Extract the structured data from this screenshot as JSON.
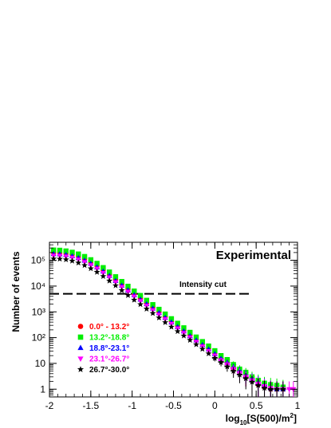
{
  "chart_data": {
    "type": "scatter",
    "annotation": "Experimental",
    "cut_label": "Intensity cut",
    "cut_level": 5000,
    "cut_x_range": [
      -2,
      0.42
    ],
    "xlabel": "log10[S(500)/m2]",
    "ylabel": "Number of events",
    "xlim": [
      -2,
      1
    ],
    "ylim": [
      0.5,
      500000
    ],
    "yscale": "log",
    "x_ticks": [
      "-2",
      "-1.5",
      "-1",
      "-0.5",
      "0",
      "0.5",
      "1"
    ],
    "y_ticks": [
      "1",
      "10",
      "10²",
      "10³",
      "10⁴",
      "10⁵"
    ],
    "grid": false,
    "legend_position": "lower-left",
    "series": [
      {
        "name": "0.0° - 13.2°",
        "color": "#ff0000",
        "marker": "circle",
        "x": [
          -1.95,
          -1.875,
          -1.8,
          -1.725,
          -1.65,
          -1.575,
          -1.5,
          -1.425,
          -1.35,
          -1.275,
          -1.2,
          -1.125,
          -1.05,
          -0.975,
          -0.9,
          -0.825,
          -0.75,
          -0.675,
          -0.6,
          -0.525,
          -0.45,
          -0.375,
          -0.3,
          -0.225,
          -0.15,
          -0.075,
          0.0,
          0.075,
          0.15,
          0.225,
          0.3,
          0.375,
          0.45,
          0.525,
          0.6,
          0.675,
          0.75,
          0.825
        ],
        "y": [
          200000,
          200000,
          190000,
          170000,
          145000,
          115000,
          85000,
          62000,
          42000,
          28000,
          18000,
          12000,
          7800,
          5000,
          3400,
          2200,
          1500,
          1000,
          650,
          430,
          290,
          190,
          125,
          85,
          55,
          37,
          24,
          15,
          11,
          6.5,
          5,
          3,
          2.5,
          1.5,
          1.2,
          1,
          1,
          1
        ]
      },
      {
        "name": "13.2°-18.8°",
        "color": "#00ee00",
        "marker": "square",
        "x": [
          -1.95,
          -1.875,
          -1.8,
          -1.725,
          -1.65,
          -1.575,
          -1.5,
          -1.425,
          -1.35,
          -1.275,
          -1.2,
          -1.125,
          -1.05,
          -0.975,
          -0.9,
          -0.825,
          -0.75,
          -0.675,
          -0.6,
          -0.525,
          -0.45,
          -0.375,
          -0.3,
          -0.225,
          -0.15,
          -0.075,
          0.0,
          0.075,
          0.15,
          0.225,
          0.3,
          0.375,
          0.45,
          0.525,
          0.6,
          0.675,
          0.75,
          0.825
        ],
        "y": [
          250000,
          245000,
          230000,
          205000,
          175000,
          140000,
          105000,
          76000,
          52000,
          35000,
          23000,
          15000,
          9800,
          6400,
          4300,
          2800,
          1900,
          1250,
          820,
          540,
          360,
          240,
          160,
          105,
          70,
          47,
          31,
          20,
          14,
          9,
          6,
          4.5,
          3,
          2.2,
          1.7,
          1.5,
          1.4,
          1.2
        ]
      },
      {
        "name": "18.8°-23.1°",
        "color": "#0000ff",
        "marker": "triangle-up",
        "x": [
          -1.95,
          -1.875,
          -1.8,
          -1.725,
          -1.65,
          -1.575,
          -1.5,
          -1.425,
          -1.35,
          -1.275,
          -1.2,
          -1.125,
          -1.05,
          -0.975,
          -0.9,
          -0.825,
          -0.75,
          -0.675,
          -0.6,
          -0.525,
          -0.45,
          -0.375,
          -0.3,
          -0.225,
          -0.15,
          -0.075,
          0.0,
          0.075,
          0.15,
          0.225,
          0.3,
          0.375,
          0.45,
          0.525,
          0.6,
          0.675,
          0.75,
          0.825
        ],
        "y": [
          175000,
          172000,
          162000,
          145000,
          123000,
          98000,
          74000,
          54000,
          37000,
          25000,
          16000,
          10500,
          6900,
          4500,
          3000,
          2000,
          1350,
          900,
          590,
          390,
          260,
          175,
          115,
          78,
          52,
          35,
          23,
          15,
          10.5,
          7,
          5,
          3.5,
          2.5,
          1.8,
          1.4,
          1.1,
          1,
          1
        ]
      },
      {
        "name": "23.1°-26.7°",
        "color": "#ff00ff",
        "marker": "triangle-down",
        "x": [
          -1.95,
          -1.875,
          -1.8,
          -1.725,
          -1.65,
          -1.575,
          -1.5,
          -1.425,
          -1.35,
          -1.275,
          -1.2,
          -1.125,
          -1.05,
          -0.975,
          -0.9,
          -0.825,
          -0.75,
          -0.675,
          -0.6,
          -0.525,
          -0.45,
          -0.375,
          -0.3,
          -0.225,
          -0.15,
          -0.075,
          0.0,
          0.075,
          0.15,
          0.225,
          0.3,
          0.375,
          0.45,
          0.525,
          0.6,
          0.675,
          0.75,
          0.825,
          0.9,
          0.95
        ],
        "y": [
          150000,
          148000,
          140000,
          125000,
          106000,
          85000,
          64000,
          47000,
          32000,
          21500,
          14000,
          9100,
          6000,
          3900,
          2600,
          1700,
          1150,
          770,
          510,
          340,
          225,
          150,
          100,
          68,
          45,
          30,
          20,
          13,
          9,
          6,
          4.2,
          3,
          2.2,
          1.6,
          1.3,
          1.1,
          1,
          1,
          1,
          1
        ]
      },
      {
        "name": "26.7°-30.0°",
        "color": "#000000",
        "marker": "star",
        "x": [
          -1.95,
          -1.875,
          -1.8,
          -1.725,
          -1.65,
          -1.575,
          -1.5,
          -1.425,
          -1.35,
          -1.275,
          -1.2,
          -1.125,
          -1.05,
          -0.975,
          -0.9,
          -0.825,
          -0.75,
          -0.675,
          -0.6,
          -0.525,
          -0.45,
          -0.375,
          -0.3,
          -0.225,
          -0.15,
          -0.075,
          0.0,
          0.075,
          0.15,
          0.225,
          0.3,
          0.375,
          0.45,
          0.525,
          0.6,
          0.675,
          0.75,
          0.825
        ],
        "y": [
          115000,
          113000,
          107000,
          95000,
          80000,
          64000,
          48000,
          35000,
          24000,
          16000,
          10500,
          6800,
          4400,
          2900,
          1950,
          1300,
          880,
          590,
          390,
          260,
          175,
          118,
          80,
          54,
          36,
          24,
          16,
          11,
          7.5,
          5,
          3.6,
          2.6,
          1.9,
          1.4,
          1.1,
          1,
          1,
          1
        ]
      }
    ]
  }
}
